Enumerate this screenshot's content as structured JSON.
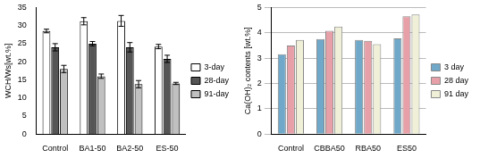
{
  "chart_data": [
    {
      "type": "bar",
      "y_label": "WCH/Ws[wt.%]",
      "categories": [
        "Control",
        "BA1-50",
        "BA2-50",
        "ES-50"
      ],
      "series": [
        {
          "name": "3-day",
          "color": "#ffffff",
          "values": [
            28.5,
            31.2,
            31.3,
            24.2
          ],
          "errors": [
            0.5,
            1.0,
            1.5,
            0.6
          ]
        },
        {
          "name": "28-day",
          "color": "#555555",
          "values": [
            24.0,
            25.0,
            24.0,
            20.8
          ],
          "errors": [
            1.0,
            0.6,
            1.3,
            1.0
          ]
        },
        {
          "name": "91-day",
          "color": "#c0c0c0",
          "values": [
            18.0,
            16.0,
            13.8,
            14.0
          ],
          "errors": [
            1.0,
            0.6,
            1.0,
            0.3
          ]
        }
      ],
      "ylim": [
        0,
        35
      ],
      "yticks": [
        0,
        5,
        10,
        15,
        20,
        25,
        30,
        35
      ],
      "grid": false,
      "legend": "right"
    },
    {
      "type": "bar",
      "y_label": "Ca(OH)₂ contents [wt.%]",
      "categories": [
        "Control",
        "CBBA50",
        "RBA50",
        "ES50"
      ],
      "series": [
        {
          "name": "3 day",
          "color": "#6fa8c8",
          "values": [
            3.15,
            3.75,
            3.72,
            3.78
          ]
        },
        {
          "name": "28 day",
          "color": "#e8a0a8",
          "values": [
            3.5,
            4.08,
            3.68,
            4.65
          ]
        },
        {
          "name": "91 day",
          "color": "#f0f0d8",
          "values": [
            3.72,
            4.25,
            3.55,
            4.72
          ]
        }
      ],
      "ylim": [
        0,
        5
      ],
      "yticks": [
        0,
        1,
        2,
        3,
        4,
        5
      ],
      "grid": true,
      "legend": "right"
    }
  ]
}
